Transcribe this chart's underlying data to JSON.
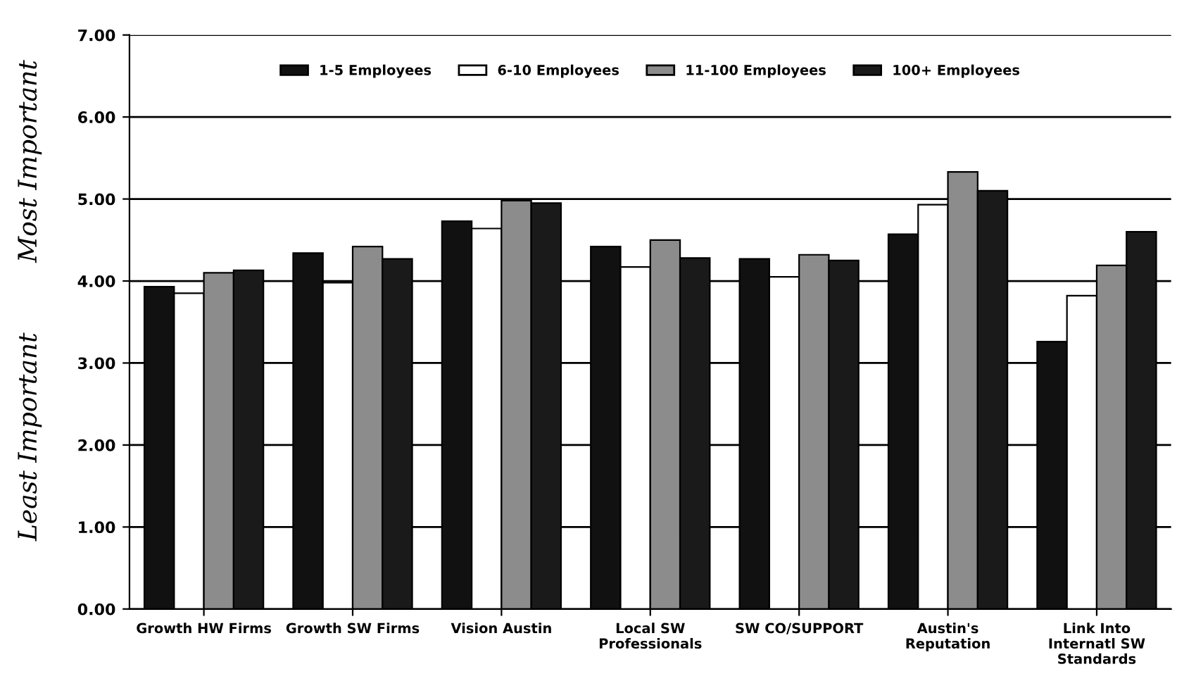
{
  "chart_data": {
    "type": "bar",
    "categories": [
      "Growth HW Firms",
      "Growth SW Firms",
      "Vision Austin",
      "Local SW\nProfessionals",
      "SW CO/SUPPORT",
      "Austin's\nReputation",
      "Link Into\nInternatl SW\nStandards"
    ],
    "series": [
      {
        "name": "1-5 Employees",
        "color": "#111111",
        "values": [
          3.93,
          4.34,
          4.73,
          4.42,
          4.27,
          4.57,
          3.26
        ]
      },
      {
        "name": "6-10 Employees",
        "color": "#ffffff",
        "values": [
          3.85,
          3.98,
          4.64,
          4.17,
          4.05,
          4.93,
          3.82
        ]
      },
      {
        "name": "11-100 Employees",
        "color": "#8c8c8c",
        "values": [
          4.1,
          4.42,
          4.98,
          4.5,
          4.32,
          5.33,
          4.19
        ]
      },
      {
        "name": "100+ Employees",
        "color": "#1a1a1a",
        "values": [
          4.13,
          4.27,
          4.95,
          4.28,
          4.25,
          5.1,
          4.6
        ]
      }
    ],
    "ylim": [
      0,
      7
    ],
    "yticks": [
      {
        "value": 0,
        "label": "0.00"
      },
      {
        "value": 1,
        "label": "1.00"
      },
      {
        "value": 2,
        "label": "2.00"
      },
      {
        "value": 3,
        "label": "3.00"
      },
      {
        "value": 4,
        "label": "4.00"
      },
      {
        "value": 5,
        "label": "5.00"
      },
      {
        "value": 6,
        "label": "6.00"
      },
      {
        "value": 7,
        "label": "7.00"
      }
    ],
    "annotations": [
      "Least Important",
      "Most Important"
    ],
    "grid": "y",
    "legend": "top"
  }
}
